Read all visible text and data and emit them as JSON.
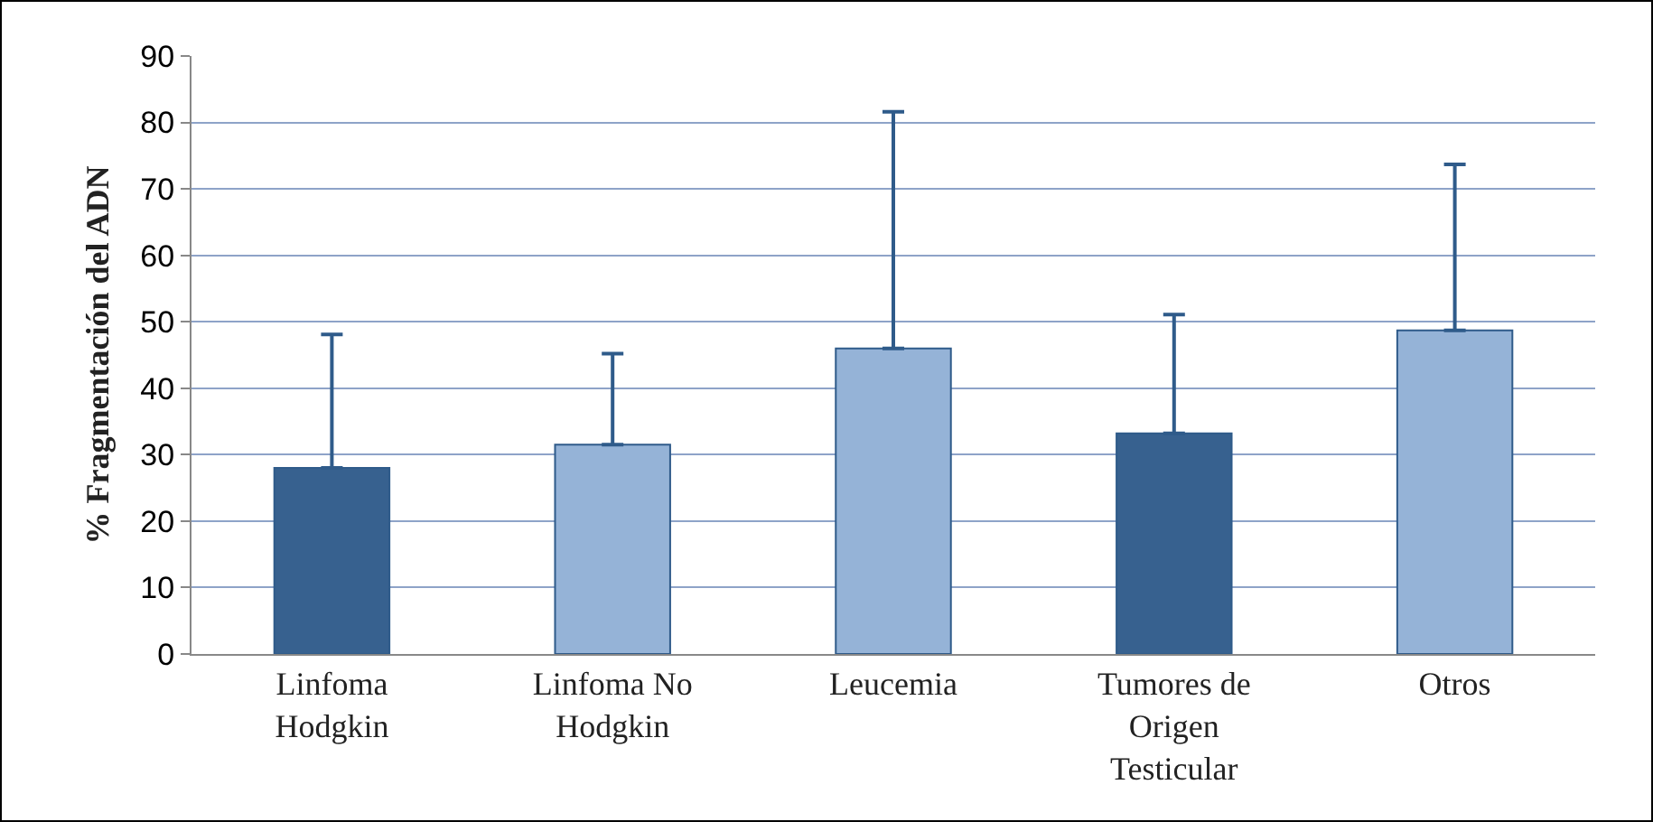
{
  "chart_data": {
    "type": "bar",
    "ylabel": "% Fragmentación del ADN",
    "categories": [
      "Linfoma Hodgkin",
      "Linfoma No Hodgkin",
      "Leucemia",
      "Tumores de Origen Testicular",
      "Otros"
    ],
    "values": [
      28,
      31.5,
      46,
      33.2,
      48.7
    ],
    "colors": [
      "#37618f",
      "#95b3d7",
      "#95b3d7",
      "#37618f",
      "#95b3d7"
    ],
    "errors": [
      [
        28,
        48.1
      ],
      [
        31.5,
        45.2
      ],
      [
        46,
        81.6
      ],
      [
        33.2,
        51.1
      ],
      [
        48.7,
        73.7
      ]
    ],
    "ylim": [
      0,
      90
    ],
    "yticks": [
      0,
      10,
      20,
      30,
      40,
      50,
      60,
      70,
      80,
      90
    ],
    "grid": "y",
    "legend": false
  }
}
